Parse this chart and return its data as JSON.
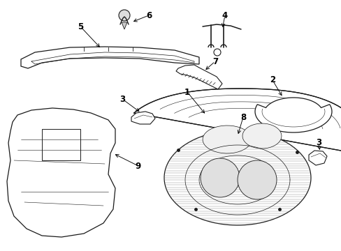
{
  "background_color": "#ffffff",
  "line_color": "#1a1a1a",
  "figsize": [
    4.89,
    3.6
  ],
  "dpi": 100,
  "xlim": [
    0,
    489
  ],
  "ylim": [
    0,
    360
  ]
}
